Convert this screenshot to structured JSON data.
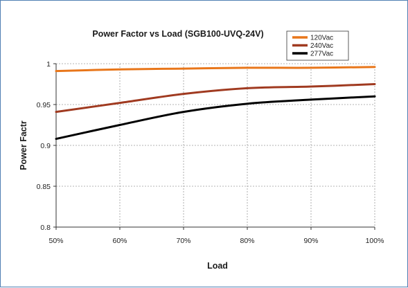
{
  "chart_data": {
    "type": "line",
    "title": "Power Factor vs Load (SGB100-UVQ-24V)",
    "xlabel": "Load",
    "ylabel": "Power Factr",
    "x_unit": "%",
    "xlim": [
      50,
      100
    ],
    "ylim": [
      0.8,
      1
    ],
    "x_ticks": [
      50,
      60,
      70,
      80,
      90,
      100
    ],
    "x_tick_labels": [
      "50%",
      "60%",
      "70%",
      "80%",
      "90%",
      "100%"
    ],
    "y_ticks": [
      0.8,
      0.85,
      0.9,
      0.95,
      1
    ],
    "y_tick_labels": [
      "0.8",
      "0.85",
      "0.9",
      "0.95",
      "1"
    ],
    "grid": "dashed",
    "legend_position": "top-right",
    "x": [
      50,
      60,
      70,
      80,
      90,
      100
    ],
    "series": [
      {
        "name": "120Vac",
        "color": "#e8761a",
        "values": [
          0.991,
          0.993,
          0.994,
          0.995,
          0.995,
          0.996
        ]
      },
      {
        "name": "240Vac",
        "color": "#a03a20",
        "values": [
          0.941,
          0.952,
          0.963,
          0.97,
          0.972,
          0.975
        ]
      },
      {
        "name": "277Vac",
        "color": "#000000",
        "values": [
          0.908,
          0.925,
          0.941,
          0.951,
          0.956,
          0.96
        ]
      }
    ]
  }
}
